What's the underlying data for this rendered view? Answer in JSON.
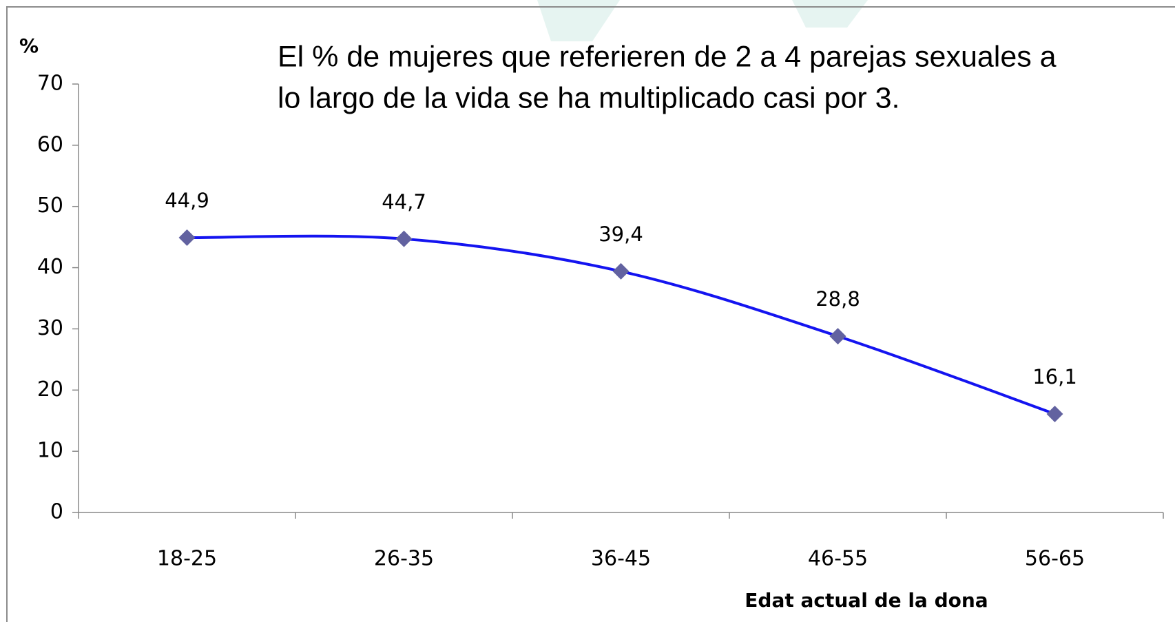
{
  "chart_data": {
    "type": "line",
    "y_axis_label": "%",
    "x_axis_label": "Edat actual de la dona",
    "annotation": [
      "El % de  mujeres que referieren de 2 a 4 parejas sexuales a",
      "lo largo de la vida se ha multiplicado casi por 3."
    ],
    "categories": [
      "18-25",
      "26-35",
      "36-45",
      "46-55",
      "56-65"
    ],
    "series": [
      {
        "name": null,
        "color": "#1414f0",
        "marker_color": "#6262a0",
        "values": [
          44.9,
          44.7,
          39.4,
          28.8,
          16.1
        ],
        "value_labels": [
          "44,9",
          "44,7",
          "39,4",
          "28,8",
          "16,1"
        ]
      }
    ],
    "ylim": [
      0,
      70
    ],
    "yticks": [
      0,
      10,
      20,
      30,
      40,
      50,
      60,
      70
    ],
    "grid": false
  }
}
